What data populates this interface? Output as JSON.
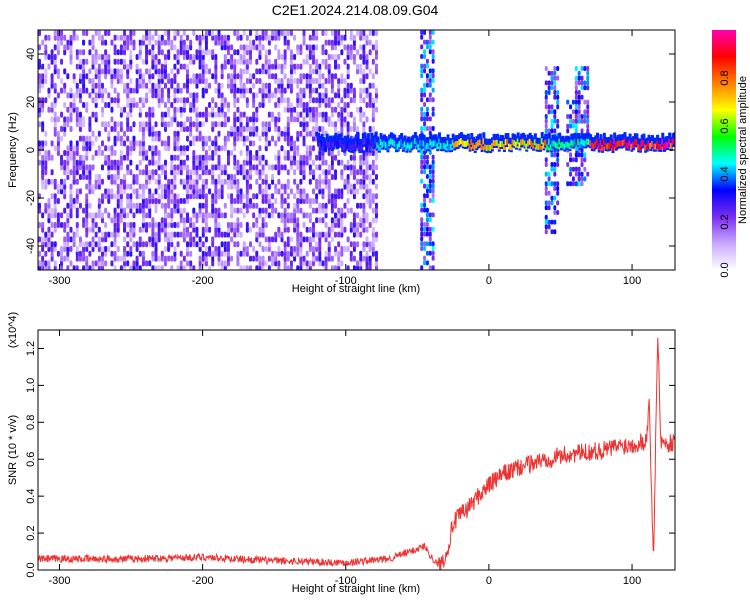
{
  "title": "C2E1.2024.214.08.09.G04",
  "chart_data": [
    {
      "type": "heatmap",
      "xlabel": "Height of straight line (km)",
      "ylabel": "Frequency (Hz)",
      "xlim": [
        -315,
        130
      ],
      "ylim": [
        -50,
        50
      ],
      "xticks": [
        -300,
        -200,
        -100,
        0,
        100
      ],
      "yticks": [
        -40,
        -20,
        0,
        20,
        40
      ],
      "colorbar": {
        "label": "Normalized spectral amplitude",
        "ticks": [
          0.0,
          0.2,
          0.4,
          0.6,
          0.8
        ],
        "range": [
          0,
          1
        ],
        "colors": [
          "#ffffff",
          "#c9a8ff",
          "#7a2cf0",
          "#0000ff",
          "#00ffff",
          "#00ff00",
          "#ffff00",
          "#ff8000",
          "#ff0000",
          "#ff00b0"
        ]
      },
      "signal_band": {
        "frequency_hz": 2,
        "segments": [
          {
            "x_from": -120,
            "x_to": -80,
            "amplitude": 0.3
          },
          {
            "x_from": -80,
            "x_to": -25,
            "amplitude": 0.45
          },
          {
            "x_from": -25,
            "x_to": 40,
            "amplitude": 0.75
          },
          {
            "x_from": 40,
            "x_to": 70,
            "amplitude": 0.5
          },
          {
            "x_from": 70,
            "x_to": 130,
            "amplitude": 0.95
          }
        ]
      },
      "noise_region": {
        "x_from": -315,
        "x_to": -78,
        "amplitude": 0.25
      },
      "vertical_bursts": [
        {
          "x": -44,
          "f_from": -50,
          "f_to": 50
        },
        {
          "x": 43,
          "f_from": -35,
          "f_to": 35
        },
        {
          "x": 58,
          "f_from": -15,
          "f_to": 20
        },
        {
          "x": 64,
          "f_from": -15,
          "f_to": 35
        }
      ]
    },
    {
      "type": "line",
      "xlabel": "Height of straight line (km)",
      "ylabel": "SNR (10 * v/v)",
      "y_multiplier": "(x10^4)",
      "xlim": [
        -315,
        130
      ],
      "ylim": [
        0,
        1.3
      ],
      "xticks": [
        -300,
        -200,
        -100,
        0,
        100
      ],
      "yticks": [
        0.0,
        0.2,
        0.4,
        0.6,
        0.8,
        1.0,
        1.2
      ],
      "color": "#ee3333",
      "series": [
        {
          "x": [
            -315,
            -250,
            -200,
            -150,
            -100,
            -70,
            -55,
            -45,
            -40,
            -35,
            -30,
            -25,
            -20,
            -15,
            -10,
            -5,
            0,
            10,
            20,
            30,
            40,
            50,
            60,
            70,
            80,
            90,
            100,
            110,
            112,
            115,
            118,
            120,
            125,
            130
          ],
          "values": [
            0.06,
            0.06,
            0.07,
            0.05,
            0.04,
            0.06,
            0.1,
            0.13,
            0.07,
            0.02,
            0.08,
            0.25,
            0.3,
            0.33,
            0.38,
            0.42,
            0.46,
            0.52,
            0.55,
            0.58,
            0.6,
            0.62,
            0.63,
            0.64,
            0.65,
            0.67,
            0.68,
            0.7,
            0.9,
            0.05,
            1.3,
            0.7,
            0.68,
            0.7
          ]
        }
      ]
    }
  ]
}
